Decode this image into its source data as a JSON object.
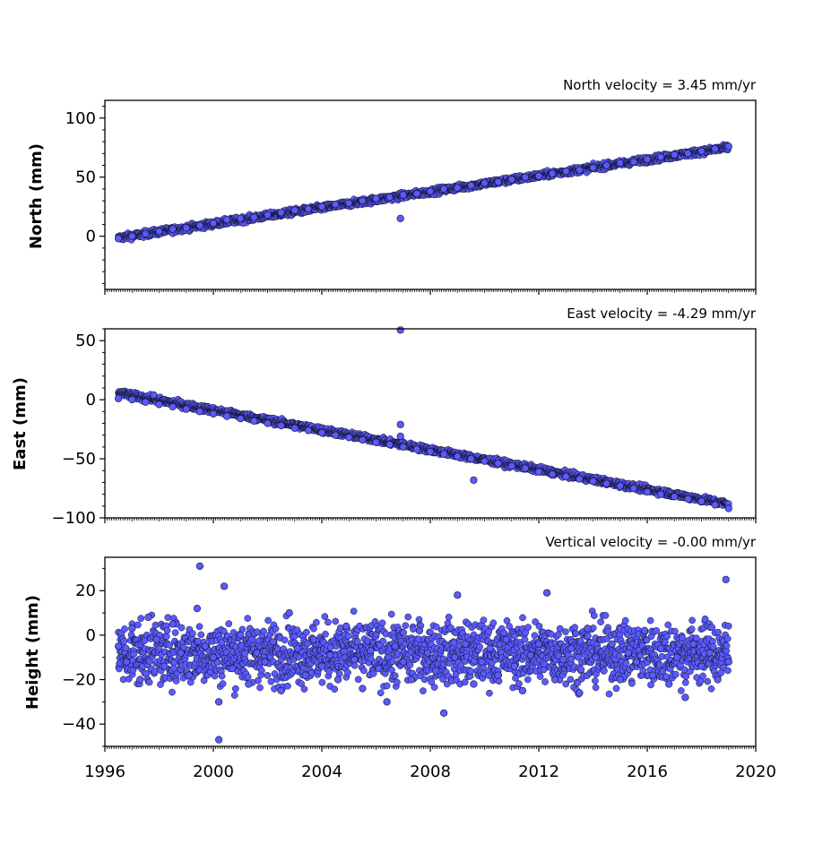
{
  "colors": {
    "marker_fill": "#5a5aff",
    "marker_edge": "#111122",
    "axes": "#000000"
  },
  "chart_data": [
    {
      "type": "scatter",
      "title": "North velocity = 3.45 mm/yr",
      "ylabel": "North (mm)",
      "xlim": [
        1996,
        2020
      ],
      "ylim": [
        -45,
        115
      ],
      "yticks": [
        0,
        50,
        100
      ],
      "yticklabels": [
        "0",
        "50",
        "100"
      ],
      "xticklabels": [],
      "series": [
        {
          "x": [
            1996.5,
            1997.0,
            1997.5,
            1998.0,
            1998.5,
            1999.0,
            1999.5,
            2000.0,
            2000.5,
            2001.0,
            2001.5,
            2002.0,
            2002.5,
            2003.0,
            2003.5,
            2004.0,
            2004.5,
            2005.0,
            2005.5,
            2006.0,
            2006.5,
            2006.9,
            2007.0,
            2007.5,
            2008.0,
            2008.5,
            2009.0,
            2009.5,
            2010.0,
            2010.5,
            2011.0,
            2011.5,
            2012.0,
            2012.5,
            2013.0,
            2013.5,
            2014.0,
            2014.5,
            2015.0,
            2015.5,
            2016.0,
            2016.5,
            2017.0,
            2017.5,
            2018.0,
            2018.5,
            2019.0
          ],
          "y": [
            -2,
            0,
            2,
            4,
            6,
            7,
            9,
            11,
            14,
            15,
            16,
            18,
            20,
            22,
            23,
            25,
            27,
            28,
            30,
            32,
            33,
            15,
            35,
            36,
            38,
            40,
            41,
            43,
            45,
            46,
            48,
            50,
            51,
            53,
            55,
            56,
            58,
            60,
            62,
            63,
            65,
            67,
            69,
            70,
            72,
            74,
            76
          ]
        }
      ]
    },
    {
      "type": "scatter",
      "title": "East velocity = -4.29 mm/yr",
      "ylabel": "East (mm)",
      "xlim": [
        1996,
        2020
      ],
      "ylim": [
        -100,
        60
      ],
      "yticks": [
        -100,
        -50,
        0,
        50
      ],
      "yticklabels": [
        "−100",
        "−50",
        "0",
        "50"
      ],
      "xticklabels": [],
      "series": [
        {
          "x": [
            1996.5,
            1997.0,
            1997.5,
            1997.8,
            1998.0,
            1998.5,
            1999.0,
            1999.5,
            2000.0,
            2000.5,
            2001.0,
            2001.5,
            2002.0,
            2002.5,
            2003.0,
            2003.5,
            2004.0,
            2004.5,
            2005.0,
            2005.5,
            2006.0,
            2006.5,
            2006.9,
            2006.9,
            2006.9,
            2007.0,
            2007.5,
            2008.0,
            2008.5,
            2009.0,
            2009.5,
            2009.6,
            2010.0,
            2010.5,
            2011.0,
            2011.5,
            2012.0,
            2012.5,
            2013.0,
            2013.5,
            2014.0,
            2014.5,
            2015.0,
            2015.5,
            2016.0,
            2016.5,
            2017.0,
            2017.5,
            2018.0,
            2018.5,
            2019.0
          ],
          "y": [
            1,
            0,
            -2,
            4,
            -4,
            -6,
            -8,
            -10,
            -12,
            -14,
            -16,
            -18,
            -20,
            -22,
            -24,
            -26,
            -28,
            -30,
            -32,
            -34,
            -36,
            -38,
            59,
            -21,
            -31,
            -40,
            -42,
            -44,
            -46,
            -48,
            -50,
            -68,
            -52,
            -54,
            -56,
            -58,
            -61,
            -63,
            -65,
            -67,
            -69,
            -71,
            -73,
            -75,
            -78,
            -80,
            -82,
            -84,
            -86,
            -89,
            -92
          ]
        }
      ]
    },
    {
      "type": "scatter",
      "title": "Vertical velocity = -0.00 mm/yr",
      "ylabel": "Height (mm)",
      "xlim": [
        1996,
        2020
      ],
      "ylim": [
        -50,
        35
      ],
      "yticks": [
        -40,
        -20,
        0,
        20
      ],
      "yticklabels": [
        "−40",
        "−20",
        "0",
        "20"
      ],
      "xticks": [
        1996,
        2000,
        2004,
        2008,
        2012,
        2016,
        2020
      ],
      "xticklabels": [
        "1996",
        "2000",
        "2004",
        "2008",
        "2012",
        "2016",
        "2020"
      ],
      "series": [
        {
          "x": [
            1996.5,
            1996.8,
            1997.0,
            1997.3,
            1997.6,
            1997.9,
            1998.2,
            1998.5,
            1998.8,
            1999.1,
            1999.4,
            1999.5,
            1999.7,
            2000.0,
            2000.2,
            2000.2,
            2000.4,
            2000.7,
            2001.0,
            2001.3,
            2001.6,
            2001.9,
            2002.2,
            2002.5,
            2002.8,
            2003.1,
            2003.4,
            2003.7,
            2004.0,
            2004.3,
            2004.6,
            2004.9,
            2005.2,
            2005.5,
            2005.8,
            2006.1,
            2006.4,
            2006.7,
            2007.0,
            2007.3,
            2007.6,
            2007.9,
            2008.2,
            2008.5,
            2008.9,
            2009.0,
            2009.3,
            2009.6,
            2009.9,
            2010.2,
            2010.5,
            2010.8,
            2011.1,
            2011.4,
            2011.7,
            2012.0,
            2012.3,
            2012.6,
            2012.9,
            2013.2,
            2013.5,
            2013.8,
            2014.1,
            2014.4,
            2014.7,
            2015.0,
            2015.3,
            2015.6,
            2015.9,
            2016.2,
            2016.5,
            2016.8,
            2017.1,
            2017.4,
            2017.7,
            2018.0,
            2018.3,
            2018.6,
            2018.9,
            2019.0
          ],
          "y": [
            -5,
            -12,
            3,
            -20,
            8,
            -2,
            -14,
            5,
            -8,
            -18,
            12,
            31,
            -5,
            -10,
            -30,
            -47,
            22,
            -15,
            0,
            -22,
            -8,
            -12,
            -3,
            -25,
            10,
            -6,
            -18,
            -2,
            -14,
            -9,
            -20,
            4,
            -11,
            -24,
            -7,
            -15,
            -30,
            -5,
            -12,
            -20,
            2,
            -8,
            -16,
            -35,
            -10,
            18,
            -4,
            -22,
            -12,
            -6,
            -18,
            -2,
            -14,
            -25,
            -9,
            -4,
            19,
            -20,
            -11,
            -6,
            -26,
            3,
            -10,
            -16,
            -4,
            -20,
            -8,
            -12,
            2,
            -18,
            -6,
            -22,
            -10,
            -28,
            -4,
            -14,
            -8,
            -20,
            25,
            -12
          ]
        }
      ]
    }
  ]
}
